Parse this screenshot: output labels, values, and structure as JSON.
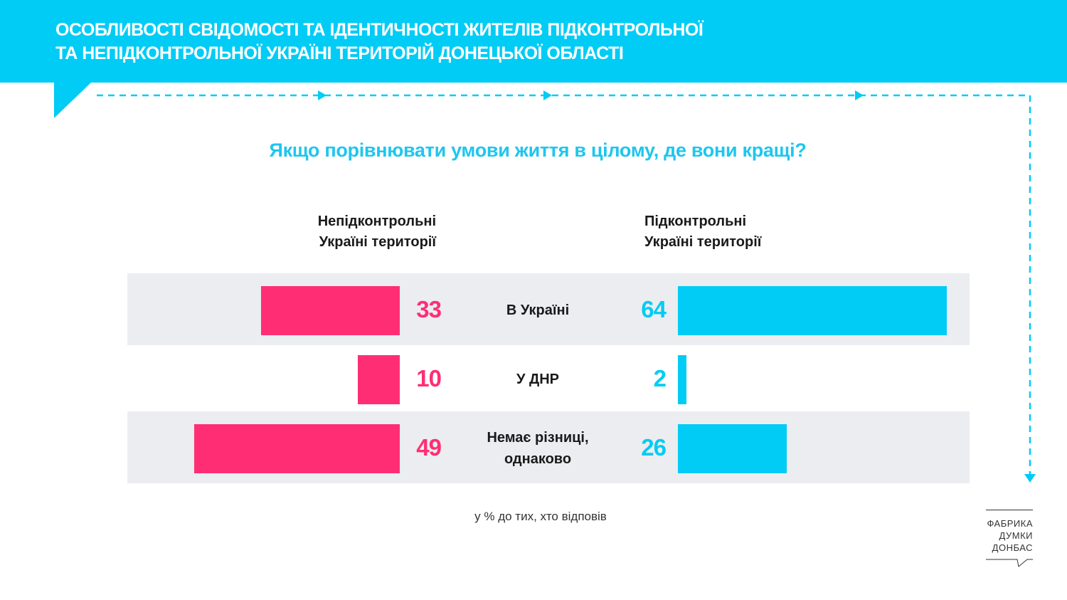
{
  "header": {
    "title_line1": "ОСОБЛИВОСТІ СВІДОМОСТІ ТА ІДЕНТИЧНОСТІ ЖИТЕЛІВ ПІДКОНТРОЛЬНОЇ",
    "title_line2": "ТА НЕПІДКОНТРОЛЬНОЇ УКРАЇНІ ТЕРИТОРІЙ ДОНЕЦЬКОЇ ОБЛАСТІ"
  },
  "colors": {
    "accent_cyan": "#00ccf5",
    "accent_pink": "#ff2e74",
    "row_background": "#ebedf0"
  },
  "chart_data": {
    "type": "bar",
    "title": "Якщо порівнювати умови життя в цілому, де вони кращі?",
    "categories": [
      "В Україні",
      "У ДНР",
      "Немає різниці, однаково"
    ],
    "category_lines": [
      [
        "В Україні"
      ],
      [
        "У ДНР"
      ],
      [
        "Немає різниці,",
        "однаково"
      ]
    ],
    "series": [
      {
        "name": "Непідконтрольні Україні території",
        "name_lines": [
          "Непідконтрольні",
          "Україні території"
        ],
        "values": [
          33,
          10,
          49
        ],
        "color": "#ff2e74"
      },
      {
        "name": "Підконтрольні Україні території",
        "name_lines": [
          "Підконтрольні",
          "Україні території"
        ],
        "values": [
          64,
          2,
          26
        ],
        "color": "#00ccf5"
      }
    ],
    "unit_note": "у % до тих, хто відповів",
    "orientation": "horizontal-diverging",
    "grid": false
  },
  "logo": {
    "lines": [
      "ФАБРИКА",
      "ДУМКИ",
      "ДОНБАС"
    ]
  }
}
